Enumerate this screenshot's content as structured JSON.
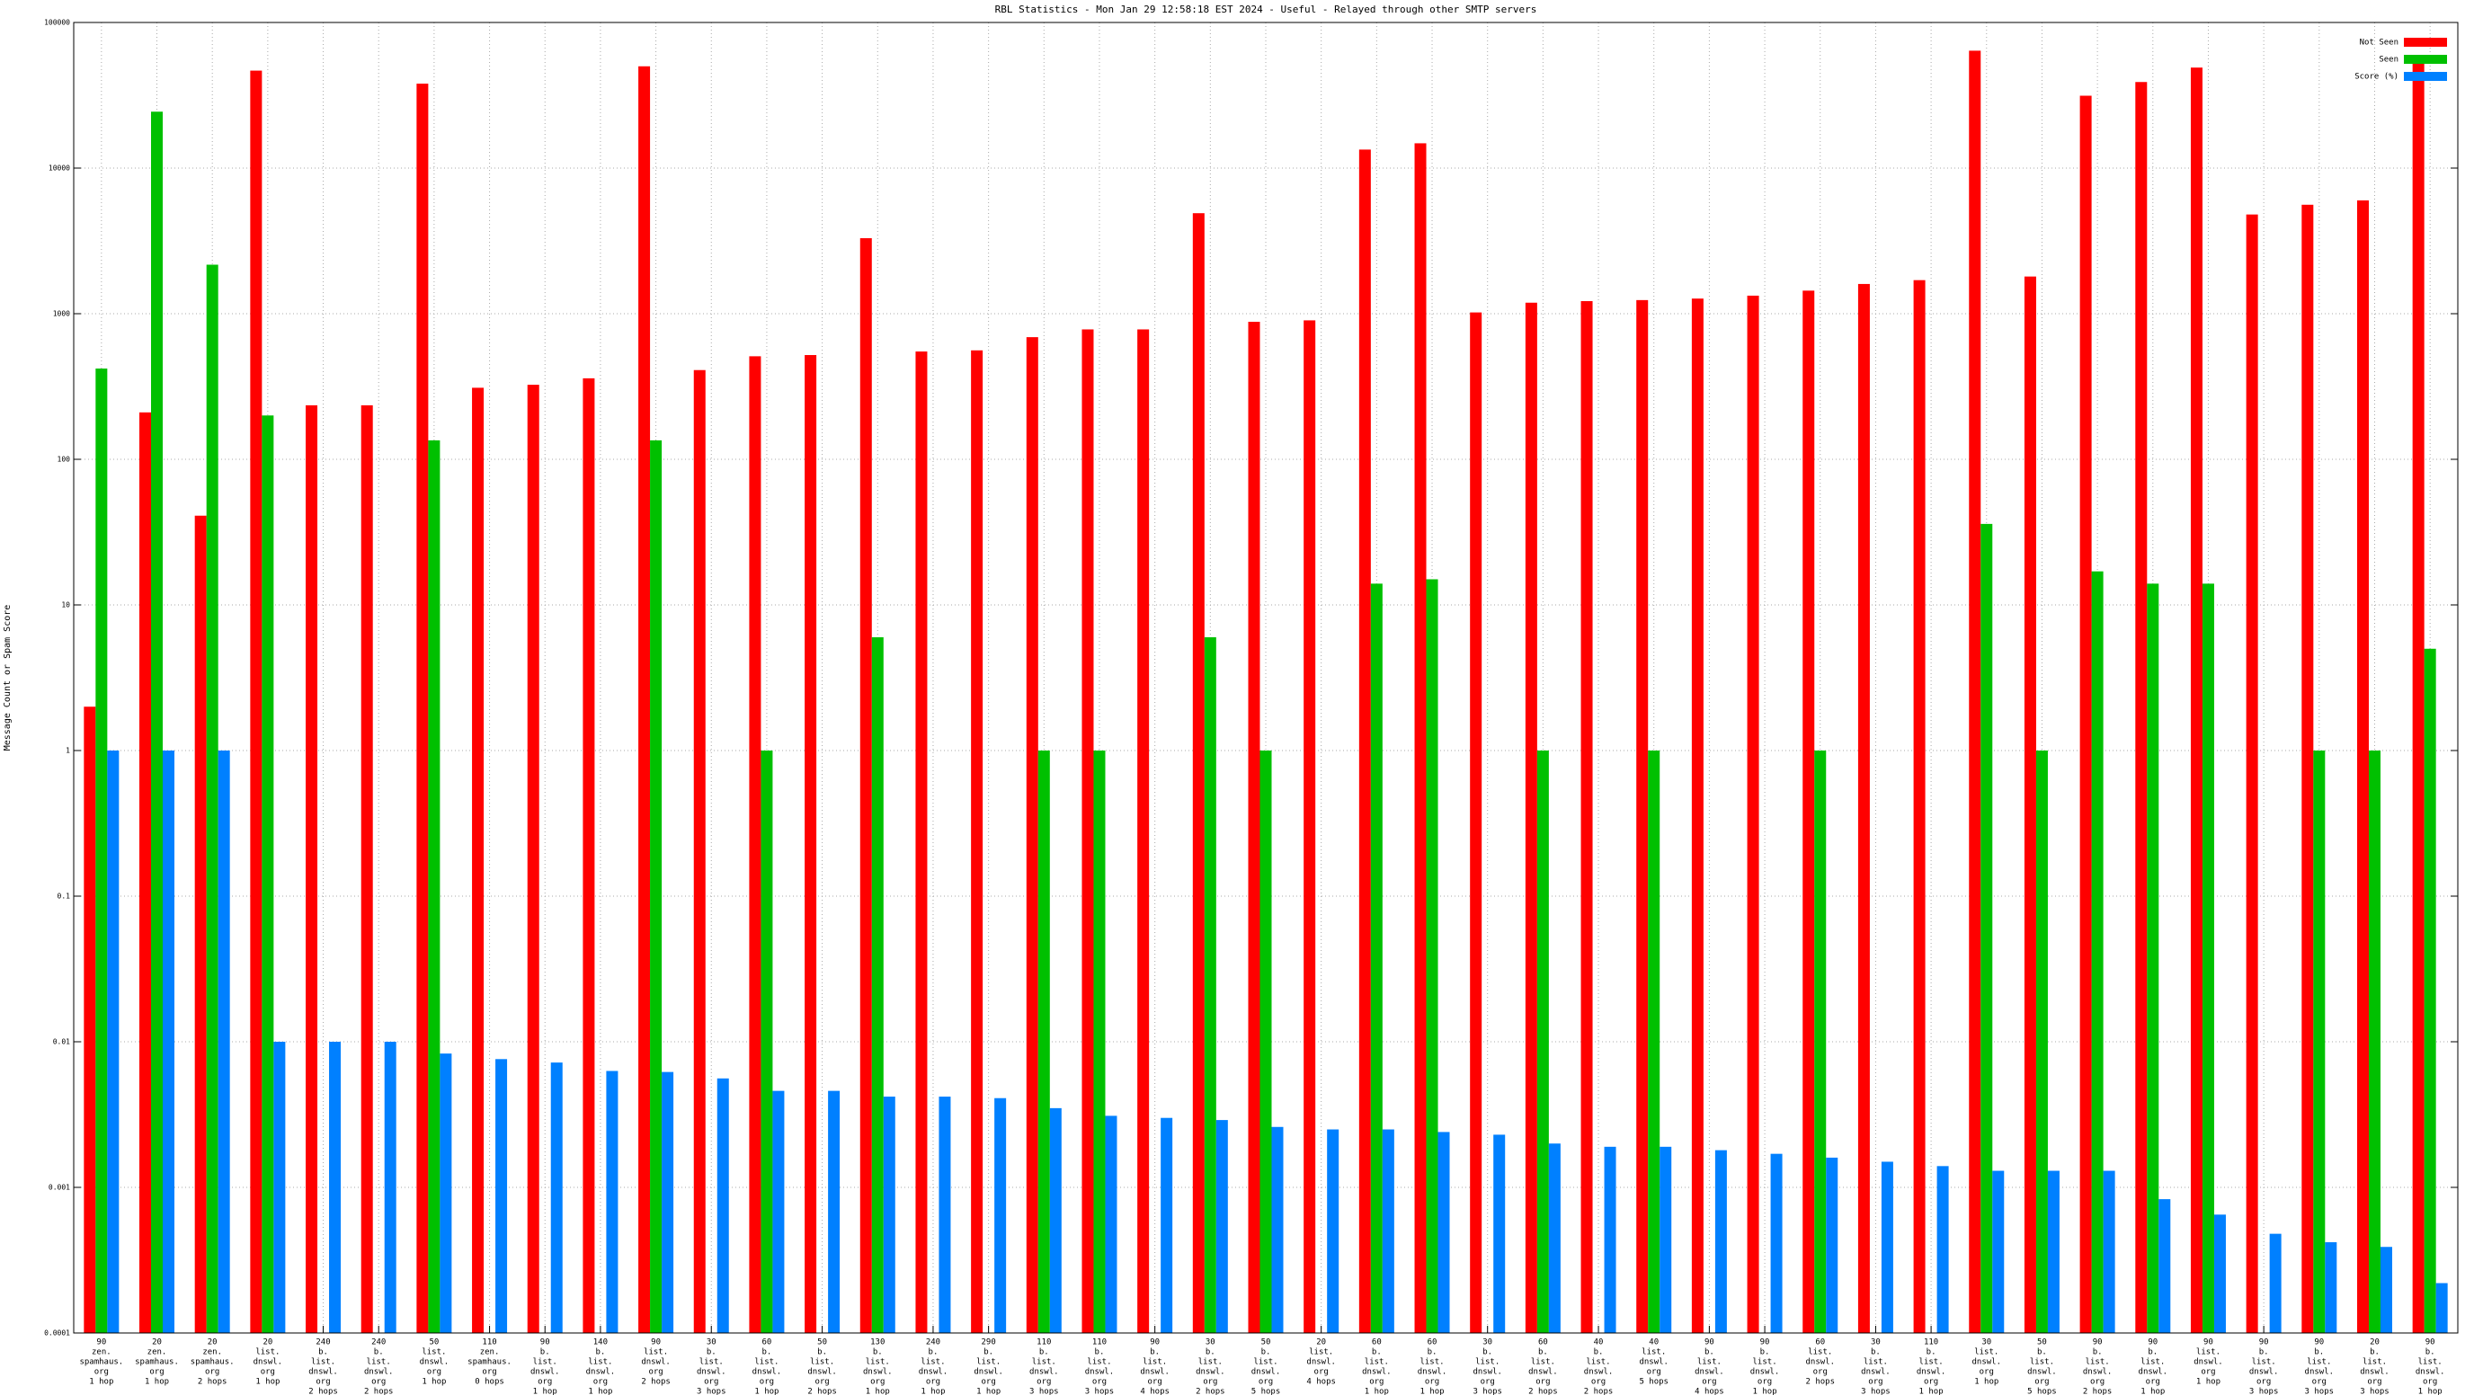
{
  "chart_data": {
    "type": "bar",
    "title": "RBL Statistics - Mon Jan 29 12:58:18 EST 2024 - Useful - Relayed through other SMTP servers",
    "y_label": "Message Count or Spam Score",
    "log_scale": true,
    "grid": true,
    "legend": "upper right",
    "ylim": [
      0.0001,
      100000
    ],
    "yticks": [
      0.0001,
      0.001,
      0.01,
      0.1,
      1,
      10,
      100,
      1000,
      10000,
      100000
    ],
    "categories": [
      [
        "90",
        "zen.",
        "spamhaus.",
        "org",
        "1 hop"
      ],
      [
        "20",
        "zen.",
        "spamhaus.",
        "org",
        "1 hop"
      ],
      [
        "20",
        "zen.",
        "spamhaus.",
        "org",
        "2 hops"
      ],
      [
        "20",
        "list.",
        "dnswl.",
        "org",
        "1 hop"
      ],
      [
        "240",
        "b.",
        "list.",
        "dnswl.",
        "org",
        "2 hops"
      ],
      [
        "240",
        "b.",
        "list.",
        "dnswl.",
        "org",
        "2 hops"
      ],
      [
        "50",
        "list.",
        "dnswl.",
        "org",
        "1 hop"
      ],
      [
        "110",
        "zen.",
        "spamhaus.",
        "org",
        "0 hops"
      ],
      [
        "90",
        "b.",
        "list.",
        "dnswl.",
        "org",
        "1 hop"
      ],
      [
        "140",
        "b.",
        "list.",
        "dnswl.",
        "org",
        "1 hop"
      ],
      [
        "90",
        "list.",
        "dnswl.",
        "org",
        "2 hops"
      ],
      [
        "30",
        "b.",
        "list.",
        "dnswl.",
        "org",
        "3 hops"
      ],
      [
        "60",
        "b.",
        "list.",
        "dnswl.",
        "org",
        "1 hop"
      ],
      [
        "50",
        "b.",
        "list.",
        "dnswl.",
        "org",
        "2 hops"
      ],
      [
        "130",
        "b.",
        "list.",
        "dnswl.",
        "org",
        "1 hop"
      ],
      [
        "240",
        "b.",
        "list.",
        "dnswl.",
        "org",
        "1 hop"
      ],
      [
        "290",
        "b.",
        "list.",
        "dnswl.",
        "org",
        "1 hop"
      ],
      [
        "110",
        "b.",
        "list.",
        "dnswl.",
        "org",
        "3 hops"
      ],
      [
        "110",
        "b.",
        "list.",
        "dnswl.",
        "org",
        "3 hops"
      ],
      [
        "90",
        "b.",
        "list.",
        "dnswl.",
        "org",
        "4 hops"
      ],
      [
        "30",
        "b.",
        "list.",
        "dnswl.",
        "org",
        "2 hops"
      ],
      [
        "50",
        "b.",
        "list.",
        "dnswl.",
        "org",
        "5 hops"
      ],
      [
        "20",
        "list.",
        "dnswl.",
        "org",
        "4 hops"
      ],
      [
        "60",
        "b.",
        "list.",
        "dnswl.",
        "org",
        "1 hop"
      ],
      [
        "60",
        "b.",
        "list.",
        "dnswl.",
        "org",
        "1 hop"
      ],
      [
        "30",
        "b.",
        "list.",
        "dnswl.",
        "org",
        "3 hops"
      ],
      [
        "60",
        "b.",
        "list.",
        "dnswl.",
        "org",
        "2 hops"
      ],
      [
        "40",
        "b.",
        "list.",
        "dnswl.",
        "org",
        "2 hops"
      ],
      [
        "40",
        "list.",
        "dnswl.",
        "org",
        "5 hops"
      ],
      [
        "90",
        "b.",
        "list.",
        "dnswl.",
        "org",
        "4 hops"
      ],
      [
        "90",
        "b.",
        "list.",
        "dnswl.",
        "org",
        "1 hop"
      ],
      [
        "60",
        "list.",
        "dnswl.",
        "org",
        "2 hops"
      ],
      [
        "30",
        "b.",
        "list.",
        "dnswl.",
        "org",
        "3 hops"
      ],
      [
        "110",
        "b.",
        "list.",
        "dnswl.",
        "org",
        "1 hop"
      ],
      [
        "30",
        "list.",
        "dnswl.",
        "org",
        "1 hop"
      ],
      [
        "50",
        "b.",
        "list.",
        "dnswl.",
        "org",
        "5 hops"
      ],
      [
        "90",
        "b.",
        "list.",
        "dnswl.",
        "org",
        "2 hops"
      ],
      [
        "90",
        "b.",
        "list.",
        "dnswl.",
        "org",
        "1 hop"
      ],
      [
        "90",
        "list.",
        "dnswl.",
        "org",
        "1 hop"
      ],
      [
        "90",
        "b.",
        "list.",
        "dnswl.",
        "org",
        "3 hops"
      ],
      [
        "90",
        "b.",
        "list.",
        "dnswl.",
        "org",
        "3 hops"
      ],
      [
        "20",
        "b.",
        "list.",
        "dnswl.",
        "org",
        "3 hops"
      ],
      [
        "90",
        "b.",
        "list.",
        "dnswl.",
        "org",
        "1 hop"
      ]
    ],
    "series": [
      {
        "name": "Not Seen",
        "color": "#ff0000",
        "values": [
          2,
          210,
          41,
          46700,
          235,
          235,
          38000,
          310,
          325,
          360,
          50000,
          410,
          510,
          520,
          3300,
          550,
          560,
          690,
          780,
          780,
          4900,
          880,
          900,
          13400,
          14800,
          1020,
          1190,
          1220,
          1240,
          1270,
          1330,
          1440,
          1600,
          1700,
          64000,
          1800,
          31400,
          39000,
          49000,
          4800,
          5600,
          6000,
          53000
        ]
      },
      {
        "name": "Seen",
        "color": "#00c000",
        "values": [
          420,
          24400,
          2170,
          200,
          null,
          null,
          135,
          null,
          null,
          null,
          135,
          null,
          1,
          null,
          6,
          null,
          null,
          1,
          1,
          null,
          6,
          1,
          null,
          14,
          15,
          null,
          1,
          null,
          1,
          null,
          null,
          1,
          null,
          null,
          36,
          1,
          17,
          14,
          14,
          null,
          1,
          1,
          5
        ]
      },
      {
        "name": "Score (%)",
        "color": "#0080ff",
        "values": [
          1,
          1,
          1,
          0.01,
          0.01,
          0.01,
          0.0083,
          0.0076,
          0.0072,
          0.0063,
          0.0062,
          0.0056,
          0.0046,
          0.0046,
          0.0042,
          0.0042,
          0.0041,
          0.0035,
          0.0031,
          0.003,
          0.0029,
          0.0026,
          0.0025,
          0.0025,
          0.0024,
          0.0023,
          0.002,
          0.0019,
          0.0019,
          0.0018,
          0.0017,
          0.0016,
          0.0015,
          0.0014,
          0.0013,
          0.0013,
          0.0013,
          0.00083,
          0.00065,
          0.00048,
          0.00042,
          0.00039,
          0.00022
        ]
      }
    ]
  }
}
